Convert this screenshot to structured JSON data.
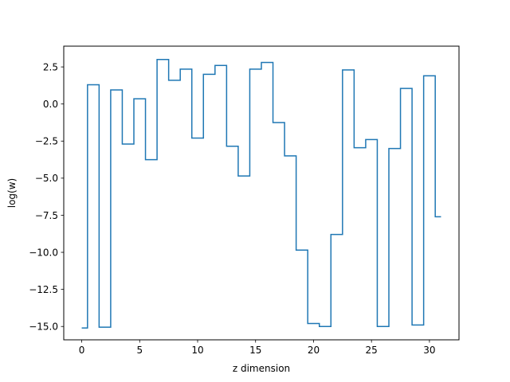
{
  "chart_data": {
    "type": "line",
    "drawstyle": "steps-mid",
    "title": "",
    "xlabel": "z dimension",
    "ylabel": "log(w)",
    "xlim": [
      -1.55,
      32.55
    ],
    "ylim": [
      -15.9,
      3.9
    ],
    "xticks": [
      0,
      5,
      10,
      15,
      20,
      25,
      30
    ],
    "xtick_labels": [
      "0",
      "5",
      "10",
      "15",
      "20",
      "25",
      "30"
    ],
    "yticks": [
      2.5,
      0.0,
      -2.5,
      -5.0,
      -7.5,
      -10.0,
      -12.5,
      -15.0
    ],
    "ytick_labels": [
      "2.5",
      "0.0",
      "−2.5",
      "−5.0",
      "−7.5",
      "−10.0",
      "−12.5",
      "−15.0"
    ],
    "grid": false,
    "legend": false,
    "line_color": "#1f77b4",
    "series": [
      {
        "x": [
          0,
          1,
          2,
          3,
          4,
          5,
          6,
          7,
          8,
          9,
          10,
          11,
          12,
          13,
          14,
          15,
          16,
          17,
          18,
          19,
          20,
          21,
          22,
          23,
          24,
          25,
          26,
          27,
          28,
          29,
          30,
          31
        ],
        "values": [
          -15.1,
          1.3,
          -15.05,
          0.95,
          -2.7,
          0.35,
          -3.75,
          3.0,
          1.6,
          2.35,
          -2.3,
          2.0,
          2.6,
          -2.85,
          -4.85,
          2.35,
          2.8,
          -1.25,
          -3.5,
          -9.85,
          -14.8,
          -15.0,
          -8.8,
          2.3,
          -2.95,
          -2.4,
          -15.0,
          -3.0,
          1.05,
          -14.9,
          1.9,
          -7.6
        ]
      }
    ]
  }
}
